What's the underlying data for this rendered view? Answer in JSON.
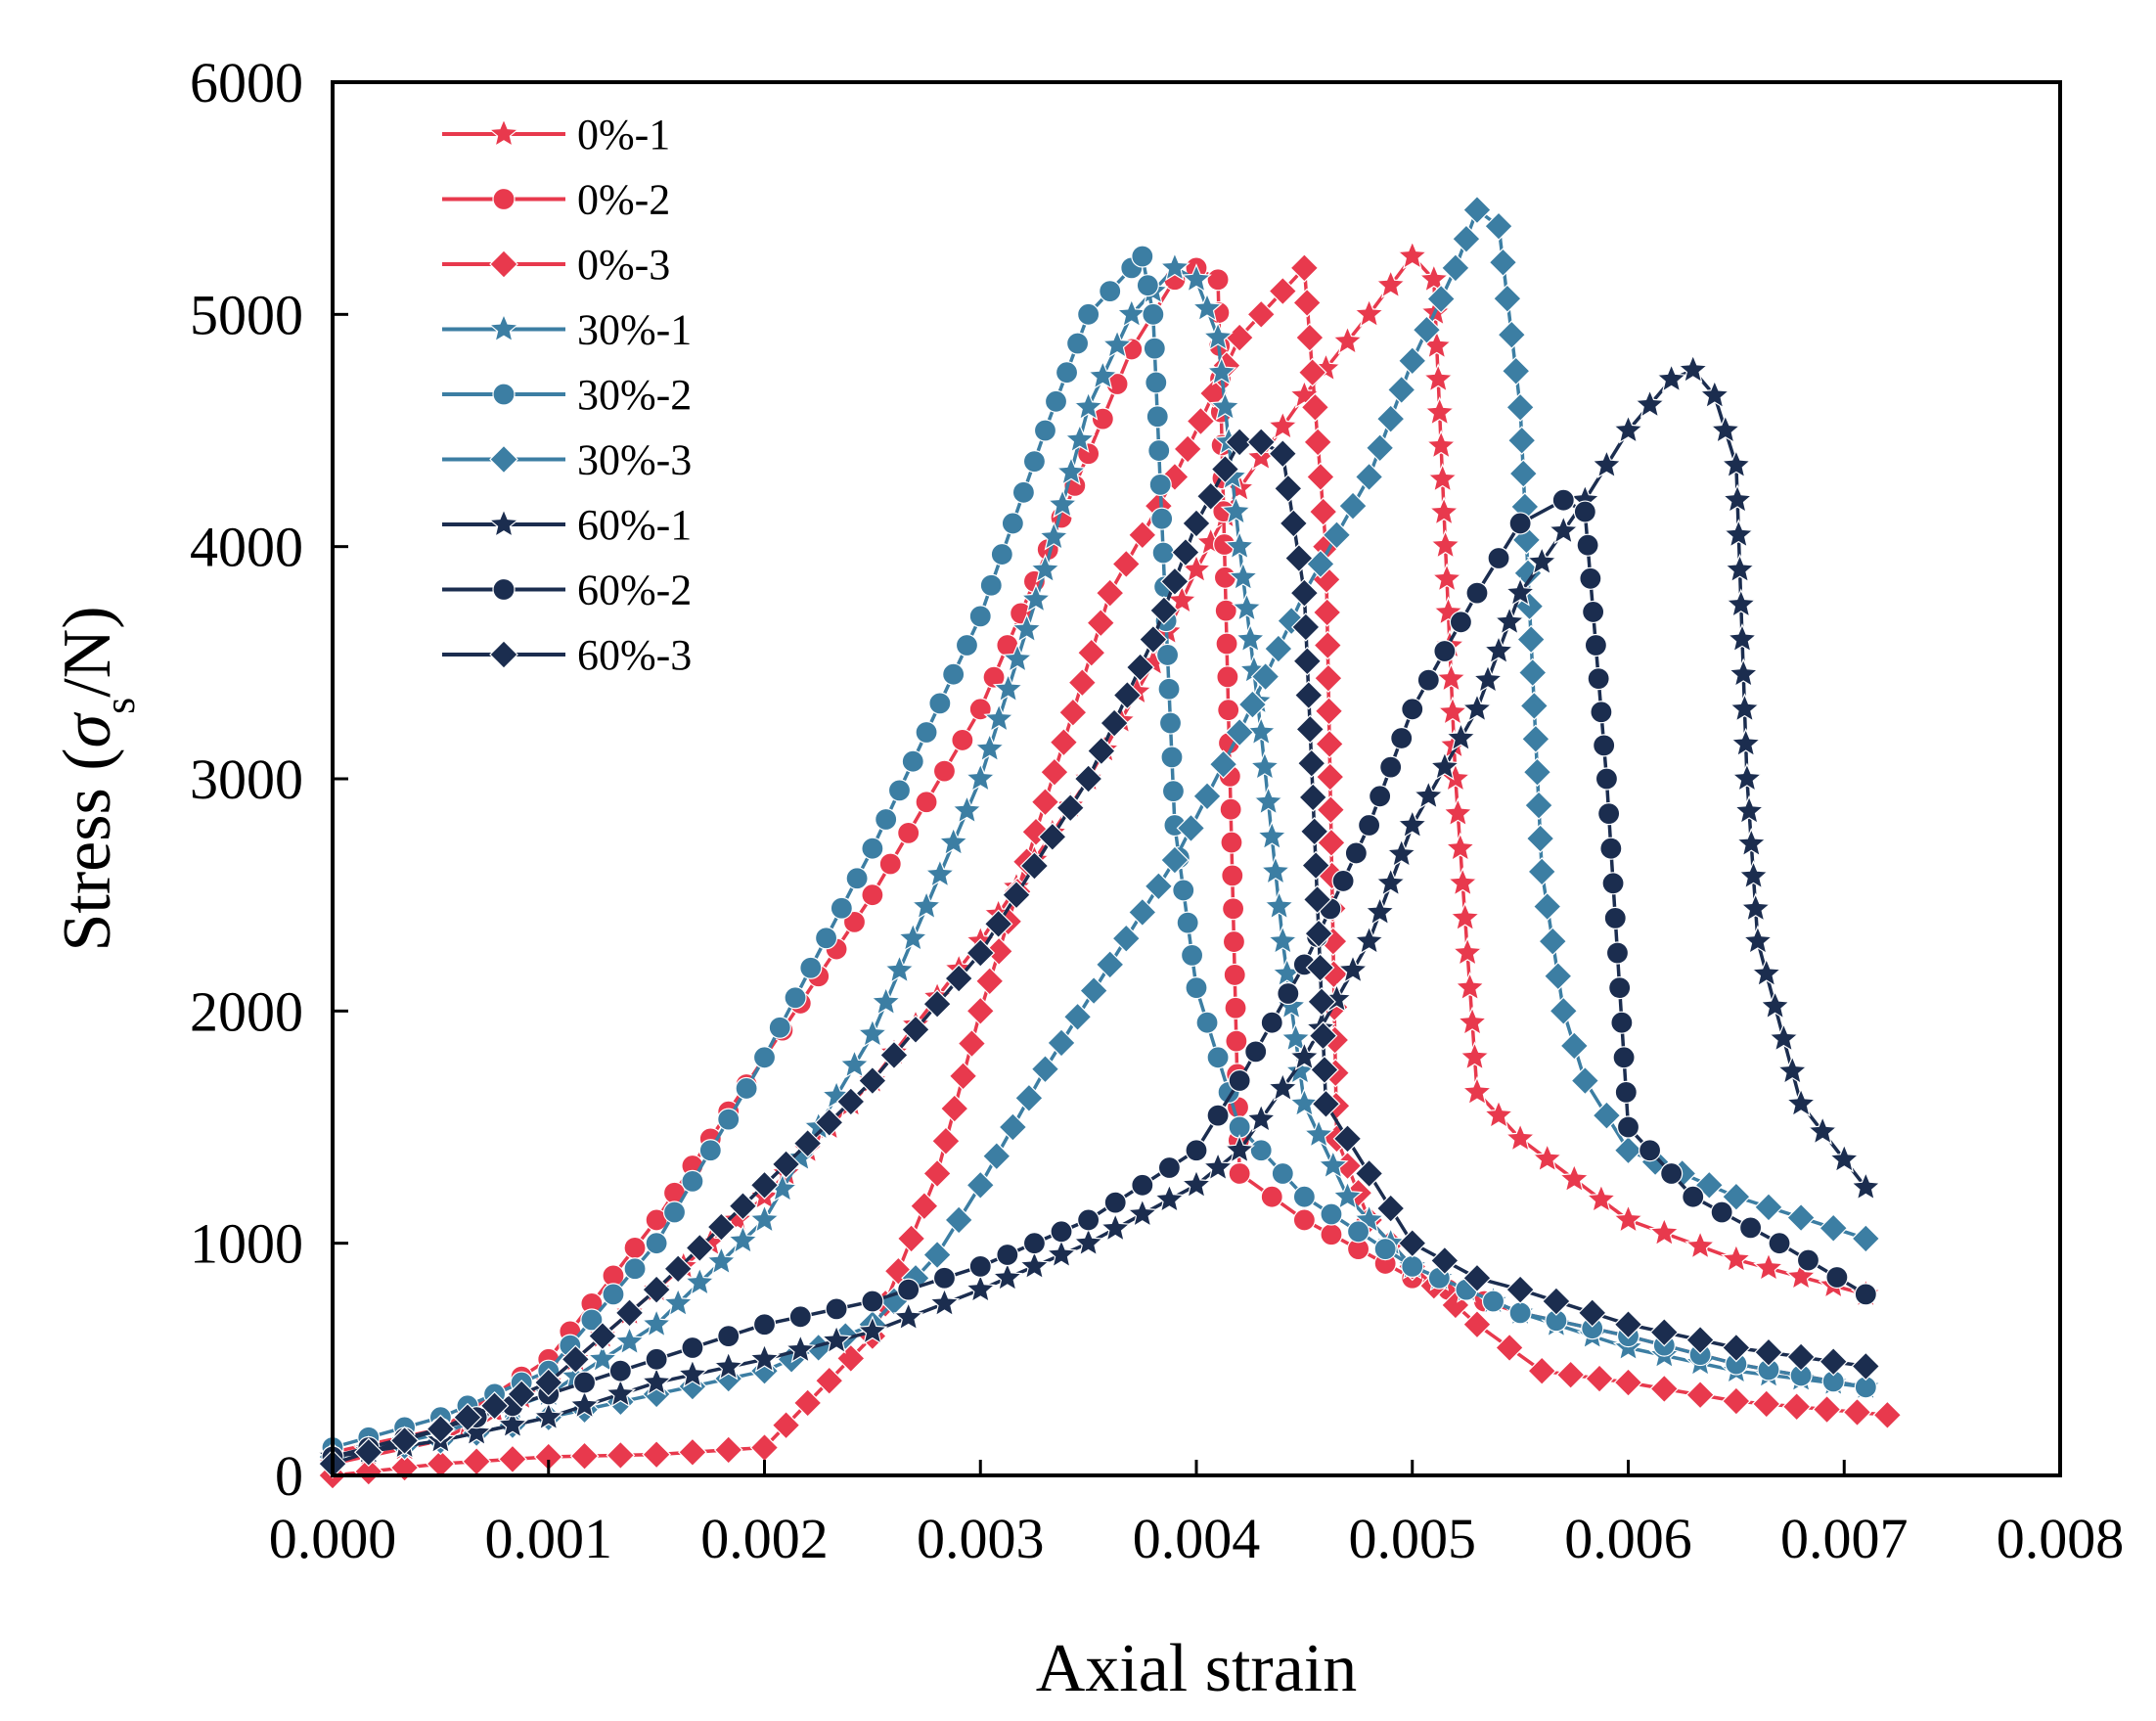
{
  "chart_data": {
    "type": "line",
    "title": "",
    "xlabel": "Axial strain",
    "ylabel": {
      "main": "Stress (",
      "sym": "σ",
      "sub": "s",
      "tail": "/N)"
    },
    "xlim": [
      0,
      0.008
    ],
    "ylim": [
      0,
      6000
    ],
    "xticks": [
      "0.000",
      "0.001",
      "0.002",
      "0.003",
      "0.004",
      "0.005",
      "0.006",
      "0.007",
      "0.008"
    ],
    "yticks": [
      "0",
      "1000",
      "2000",
      "3000",
      "4000",
      "5000",
      "6000"
    ],
    "xtick_values": [
      0,
      0.001,
      0.002,
      0.003,
      0.004,
      0.005,
      0.006,
      0.007,
      0.008
    ],
    "ytick_values": [
      0,
      1000,
      2000,
      3000,
      4000,
      5000,
      6000
    ],
    "grid": false,
    "legend_position": "top-left",
    "series": [
      {
        "name": "0%-1",
        "color": "#e8394d",
        "marker": "star",
        "x": [
          0,
          0.0005,
          0.001,
          0.0015,
          0.002,
          0.0025,
          0.003,
          0.0035,
          0.0038,
          0.004,
          0.0042,
          0.0045,
          0.0048,
          0.005,
          0.0051,
          0.0052,
          0.0053,
          0.0055,
          0.006,
          0.0065,
          0.0071
        ],
        "y": [
          50,
          150,
          400,
          800,
          1200,
          1700,
          2300,
          3000,
          3500,
          3900,
          4250,
          4650,
          5000,
          5250,
          5150,
          3000,
          1650,
          1450,
          1100,
          930,
          780
        ]
      },
      {
        "name": "0%-2",
        "color": "#e8394d",
        "marker": "circle",
        "x": [
          0,
          0.0005,
          0.001,
          0.0015,
          0.002,
          0.0025,
          0.003,
          0.0035,
          0.0037,
          0.0039,
          0.004,
          0.0041,
          0.0042,
          0.0045,
          0.005,
          0.0055,
          0.006,
          0.0065,
          0.0071
        ],
        "y": [
          100,
          200,
          500,
          1100,
          1800,
          2500,
          3300,
          4400,
          4850,
          5150,
          5200,
          5150,
          1300,
          1100,
          850,
          700,
          600,
          480,
          380
        ]
      },
      {
        "name": "0%-3",
        "color": "#e8394d",
        "marker": "diamond",
        "x": [
          0,
          0.0005,
          0.001,
          0.0015,
          0.002,
          0.0025,
          0.0028,
          0.003,
          0.0033,
          0.0036,
          0.0039,
          0.0042,
          0.0045,
          0.0046,
          0.00465,
          0.0048,
          0.005,
          0.0053,
          0.0056,
          0.006,
          0.0065,
          0.0072
        ],
        "y": [
          0,
          50,
          80,
          90,
          120,
          600,
          1300,
          2000,
          2900,
          3800,
          4300,
          4900,
          5200,
          4000,
          1450,
          1100,
          900,
          650,
          450,
          400,
          320,
          260
        ]
      },
      {
        "name": "30%-1",
        "color": "#3c7ea3",
        "marker": "star",
        "x": [
          0,
          0.0005,
          0.001,
          0.0015,
          0.002,
          0.0025,
          0.003,
          0.0033,
          0.0035,
          0.0037,
          0.0039,
          0.004,
          0.0041,
          0.0042,
          0.0043,
          0.0044,
          0.0045,
          0.0047,
          0.005,
          0.0055,
          0.006,
          0.0065,
          0.0071
        ],
        "y": [
          80,
          180,
          350,
          650,
          1100,
          1900,
          3000,
          3900,
          4600,
          5000,
          5200,
          5150,
          4900,
          4000,
          3200,
          2300,
          1600,
          1200,
          900,
          700,
          550,
          450,
          380
        ]
      },
      {
        "name": "30%-2",
        "color": "#3c7ea3",
        "marker": "circle",
        "x": [
          0,
          0.0005,
          0.001,
          0.0015,
          0.002,
          0.0025,
          0.003,
          0.0033,
          0.0035,
          0.0037,
          0.00375,
          0.0038,
          0.0039,
          0.004,
          0.0041,
          0.0042,
          0.0045,
          0.005,
          0.0055,
          0.006,
          0.0065,
          0.0071
        ],
        "y": [
          120,
          250,
          450,
          1000,
          1800,
          2700,
          3700,
          4500,
          5000,
          5200,
          5250,
          5000,
          2800,
          2100,
          1800,
          1500,
          1200,
          900,
          700,
          600,
          480,
          380
        ]
      },
      {
        "name": "30%-3",
        "color": "#3c7ea3",
        "marker": "diamond",
        "x": [
          0,
          0.0005,
          0.001,
          0.0015,
          0.002,
          0.0025,
          0.0028,
          0.003,
          0.0033,
          0.0036,
          0.0039,
          0.0042,
          0.0045,
          0.0048,
          0.005,
          0.0052,
          0.0053,
          0.0054,
          0.0055,
          0.0056,
          0.0057,
          0.0058,
          0.006,
          0.0065,
          0.0071
        ],
        "y": [
          80,
          150,
          250,
          350,
          450,
          650,
          950,
          1250,
          1750,
          2200,
          2650,
          3200,
          3800,
          4300,
          4800,
          5200,
          5450,
          5380,
          4600,
          2600,
          2000,
          1700,
          1400,
          1200,
          1020
        ]
      },
      {
        "name": "60%-1",
        "color": "#1b2d4f",
        "marker": "star",
        "x": [
          0,
          0.0005,
          0.001,
          0.0015,
          0.002,
          0.0025,
          0.003,
          0.0035,
          0.004,
          0.0042,
          0.0045,
          0.0048,
          0.005,
          0.0053,
          0.0055,
          0.0058,
          0.006,
          0.0062,
          0.0063,
          0.0064,
          0.0065,
          0.00655,
          0.0066,
          0.0068,
          0.0071
        ],
        "y": [
          80,
          150,
          250,
          400,
          500,
          620,
          800,
          1000,
          1250,
          1400,
          1800,
          2300,
          2800,
          3300,
          3800,
          4200,
          4500,
          4720,
          4760,
          4650,
          4350,
          3000,
          2300,
          1600,
          1240
        ]
      },
      {
        "name": "60%-2",
        "color": "#1b2d4f",
        "marker": "circle",
        "x": [
          0,
          0.0005,
          0.001,
          0.0015,
          0.002,
          0.0025,
          0.003,
          0.0035,
          0.004,
          0.0042,
          0.0045,
          0.0048,
          0.005,
          0.0053,
          0.0055,
          0.0057,
          0.0058,
          0.0059,
          0.006,
          0.0063,
          0.0067,
          0.0071
        ],
        "y": [
          80,
          200,
          350,
          500,
          650,
          750,
          900,
          1100,
          1400,
          1700,
          2200,
          2800,
          3300,
          3800,
          4100,
          4200,
          4150,
          3000,
          1500,
          1200,
          1000,
          780
        ]
      },
      {
        "name": "60%-3",
        "color": "#1b2d4f",
        "marker": "diamond",
        "x": [
          0,
          0.0005,
          0.001,
          0.0015,
          0.002,
          0.0025,
          0.003,
          0.0035,
          0.0038,
          0.004,
          0.0042,
          0.0043,
          0.0044,
          0.0045,
          0.0046,
          0.0048,
          0.005,
          0.0053,
          0.0055,
          0.006,
          0.0065,
          0.0071
        ],
        "y": [
          50,
          200,
          400,
          800,
          1250,
          1700,
          2250,
          3000,
          3600,
          4100,
          4450,
          4450,
          4400,
          3800,
          1600,
          1300,
          1000,
          850,
          800,
          650,
          550,
          470
        ]
      }
    ]
  }
}
